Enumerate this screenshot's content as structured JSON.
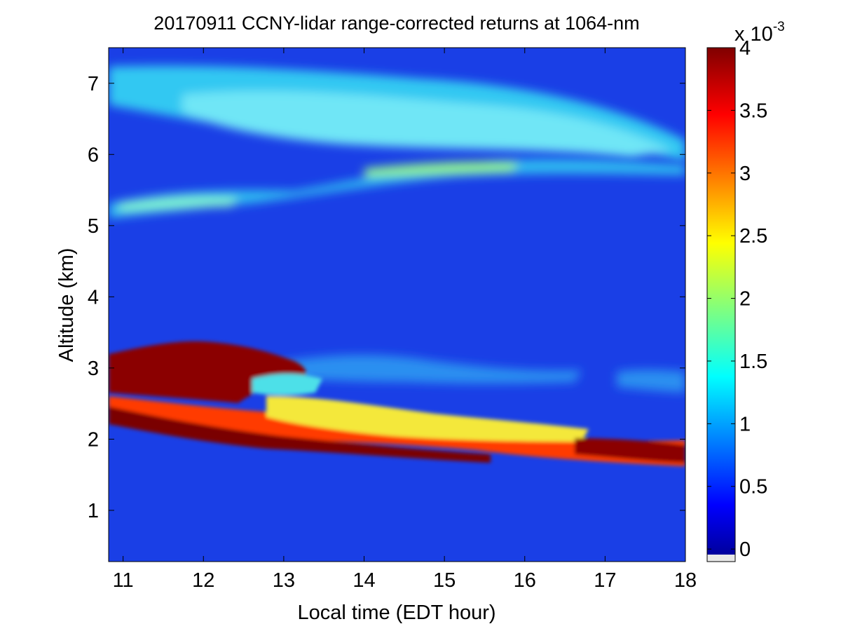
{
  "chart_data": {
    "type": "heatmap",
    "title": "20170911 CCNY-lidar range-corrected returns at 1064-nm",
    "xlabel": "Local time (EDT hour)",
    "ylabel": "Altitude (km)",
    "xlim": [
      10.82,
      18.0
    ],
    "ylim": [
      0.28,
      7.5
    ],
    "x_ticks": [
      11,
      12,
      13,
      14,
      15,
      16,
      17,
      18
    ],
    "y_ticks": [
      1,
      2,
      3,
      4,
      5,
      6,
      7
    ],
    "grid": false,
    "colorbar": {
      "colormap": "jet",
      "range": [
        -0.1,
        4.0
      ],
      "ticks": [
        0,
        0.5,
        1,
        1.5,
        2,
        2.5,
        3,
        3.5,
        4
      ],
      "tick_labels": [
        "0",
        "0.5",
        "1",
        "1.5",
        "2",
        "2.5",
        "3",
        "3.5",
        "4"
      ],
      "exponent_base": "x 10",
      "exponent_power": "-3"
    },
    "features": [
      {
        "time": [
          10.82,
          18.0
        ],
        "altitude": [
          2.6,
          1.75
        ],
        "level": 3.9
      },
      {
        "time": [
          11.0,
          13.3
        ],
        "altitude": [
          2.9,
          2.9
        ],
        "level": 4.0
      },
      {
        "time": [
          13.5,
          16.5
        ],
        "altitude": [
          2.25,
          2.05
        ],
        "level": 2.3
      },
      {
        "time": [
          10.82,
          17.0
        ],
        "altitude": [
          6.9,
          6.4
        ],
        "level": 1.4
      },
      {
        "time": [
          13.5,
          16.0
        ],
        "altitude": [
          5.8,
          5.85
        ],
        "level": 1.6
      },
      {
        "time": [
          10.82,
          12.8
        ],
        "altitude": [
          5.3,
          5.3
        ],
        "level": 1.4
      },
      {
        "time": [
          13.0,
          14.5
        ],
        "altitude": [
          3.0,
          3.0
        ],
        "level": 1.3
      }
    ]
  }
}
